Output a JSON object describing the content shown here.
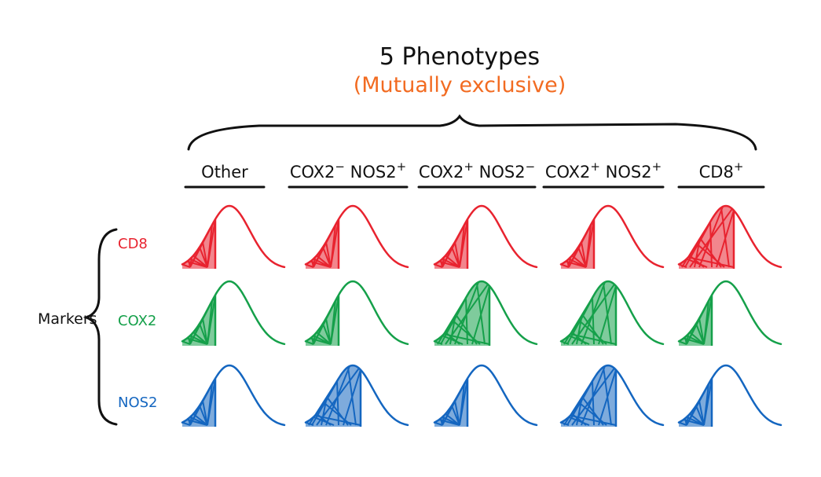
{
  "title": "5 Phenotypes",
  "subtitle": "(Mutually exclusive)",
  "group_label": "Markers",
  "colors": {
    "ink": "#111111",
    "subtitle": "#f26b21",
    "cd8": "#e8232f",
    "cox2": "#15a04a",
    "nos2": "#1466c0"
  },
  "phenotypes": [
    {
      "label": "Other",
      "sup": ""
    },
    {
      "label": "COX2",
      "sup": "−",
      "label2": " NOS2",
      "sup2": "+"
    },
    {
      "label": "COX2",
      "sup": "+",
      "label2": " NOS2",
      "sup2": "−"
    },
    {
      "label": "COX2",
      "sup": "+",
      "label2": " NOS2",
      "sup2": "+"
    },
    {
      "label": "CD8",
      "sup": "+"
    }
  ],
  "markers": [
    {
      "label": "CD8",
      "color": "#e8232f"
    },
    {
      "label": "COX2",
      "color": "#15a04a"
    },
    {
      "label": "NOS2",
      "color": "#1466c0"
    }
  ],
  "fill_fraction": [
    [
      0.45,
      0.45,
      0.45,
      0.45,
      0.75
    ],
    [
      0.45,
      0.45,
      0.75,
      0.75,
      0.45
    ],
    [
      0.45,
      0.75,
      0.45,
      0.75,
      0.45
    ]
  ]
}
